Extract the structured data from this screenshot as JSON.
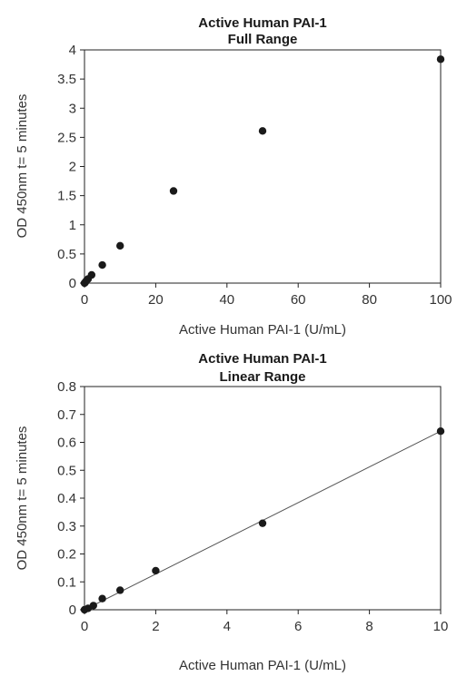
{
  "chart_data": [
    {
      "type": "scatter",
      "title": "Active Human PAI-1",
      "subtitle": "Full Range",
      "xlabel": "Active Human PAI-1 (U/mL)",
      "ylabel": "OD 450nm t= 5 minutes",
      "xlim": [
        0,
        100
      ],
      "ylim": [
        0,
        4
      ],
      "xticks": [
        "0",
        "20",
        "40",
        "60",
        "80",
        "100"
      ],
      "yticks": [
        "0",
        "0.5",
        "1",
        "1.5",
        "2",
        "2.5",
        "3",
        "3.5",
        "4"
      ],
      "grid": false,
      "series": [
        {
          "x": [
            0,
            0.1,
            0.25,
            0.5,
            1,
            2,
            5,
            10,
            25,
            50,
            100
          ],
          "y": [
            0.0,
            0.005,
            0.015,
            0.04,
            0.07,
            0.14,
            0.31,
            0.64,
            1.58,
            2.61,
            3.84
          ]
        }
      ],
      "colors": {
        "marker": "#1a1a1a",
        "axis": "#222222"
      }
    },
    {
      "type": "scatter",
      "title": "Active Human PAI-1",
      "subtitle": "Linear Range",
      "xlabel": "Active Human PAI-1 (U/mL)",
      "ylabel": "OD 450nm t= 5 minutes",
      "xlim": [
        0,
        10
      ],
      "ylim": [
        0,
        0.8
      ],
      "xticks": [
        "0",
        "2",
        "4",
        "6",
        "8",
        "10"
      ],
      "yticks": [
        "0",
        "0.1",
        "0.2",
        "0.3",
        "0.4",
        "0.5",
        "0.6",
        "0.7",
        "0.8"
      ],
      "grid": false,
      "trendline": {
        "x": [
          0,
          10
        ],
        "y": [
          0.0,
          0.64
        ]
      },
      "series": [
        {
          "x": [
            0,
            0.1,
            0.25,
            0.5,
            1,
            2,
            5,
            10
          ],
          "y": [
            0.0,
            0.005,
            0.015,
            0.04,
            0.07,
            0.14,
            0.31,
            0.64
          ]
        }
      ],
      "colors": {
        "marker": "#1a1a1a",
        "axis": "#222222",
        "trendline": "#555555"
      }
    }
  ]
}
